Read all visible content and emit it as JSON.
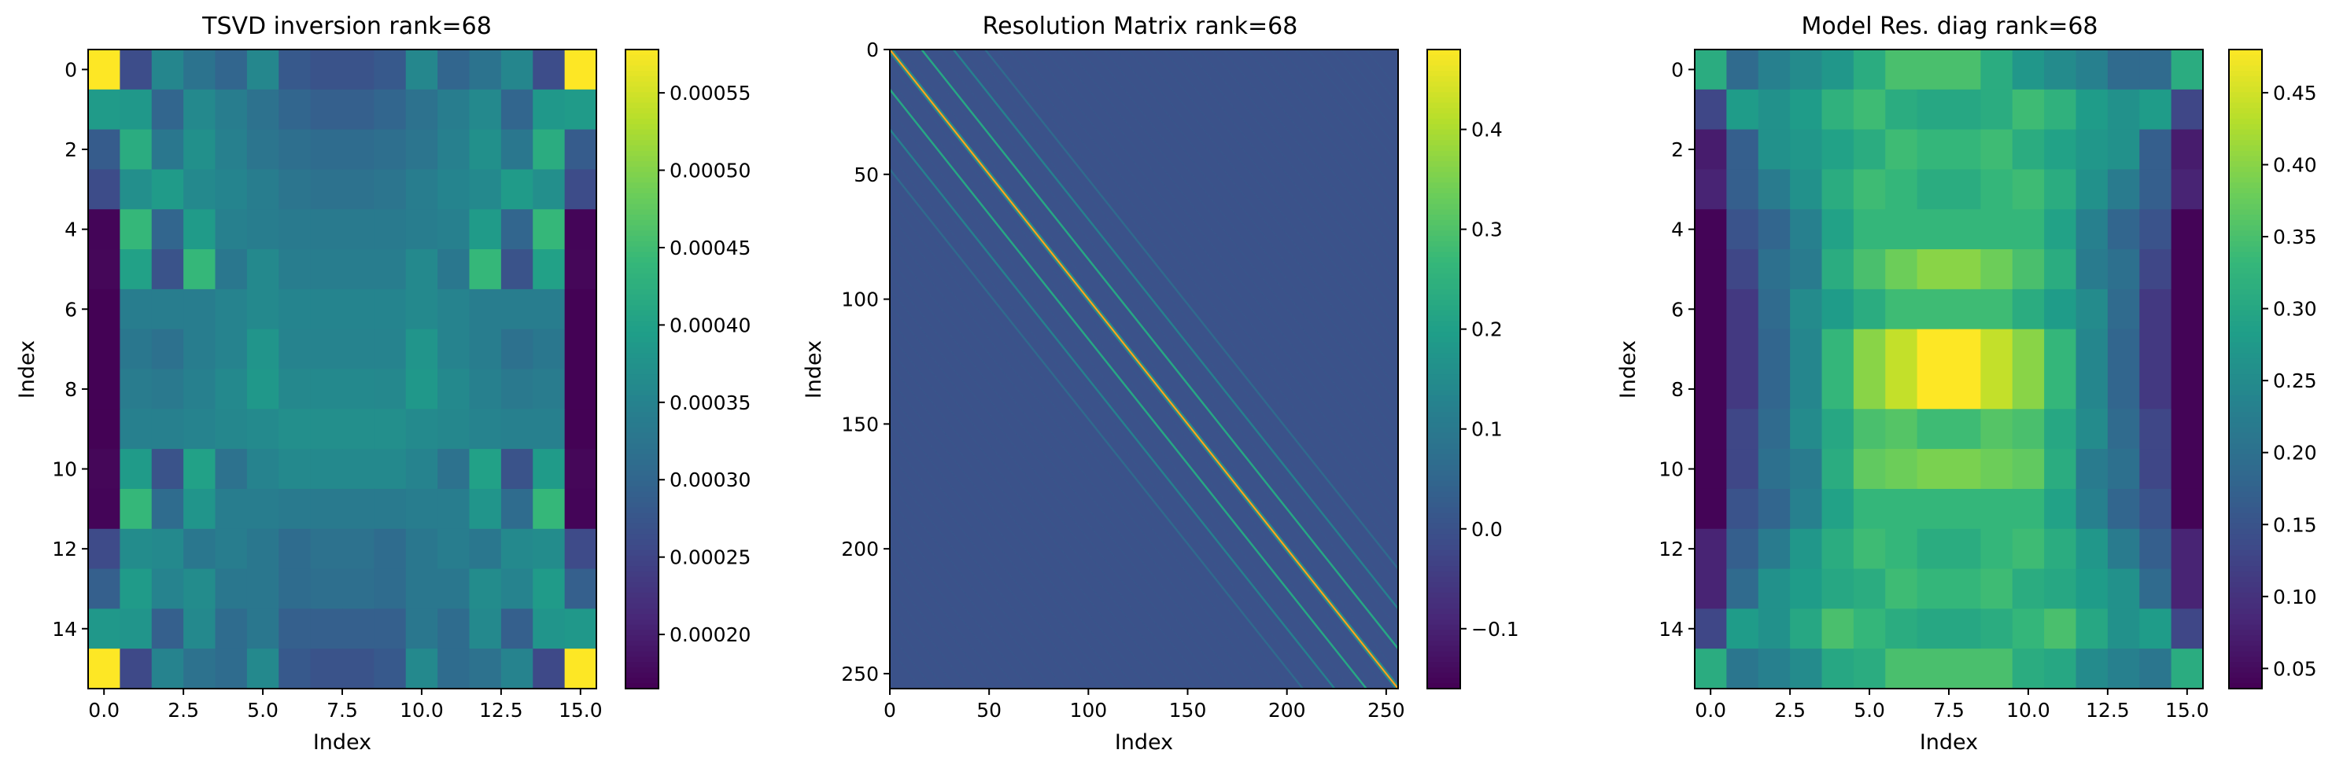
{
  "colors": {
    "viridis_stops": [
      "#440154",
      "#482878",
      "#3e4a89",
      "#31688e",
      "#26828e",
      "#1f9e89",
      "#35b779",
      "#6ece58",
      "#b5de2b",
      "#fde725"
    ],
    "diag_cells": [
      "#26828e",
      "#fde725",
      "#e67e22"
    ],
    "background": "#ffffff"
  },
  "chart_data": [
    {
      "type": "heatmap",
      "title": "TSVD inversion rank=68",
      "xlabel": "Index",
      "ylabel": "Index",
      "rows": 16,
      "cols": 16,
      "x_ticks": [
        0.0,
        2.5,
        5.0,
        7.5,
        10.0,
        12.5,
        15.0
      ],
      "x_tick_labels": [
        "0.0",
        "2.5",
        "5.0",
        "7.5",
        "10.0",
        "12.5",
        "15.0"
      ],
      "y_ticks": [
        0,
        2,
        4,
        6,
        8,
        10,
        12,
        14
      ],
      "y_tick_labels": [
        "0",
        "2",
        "4",
        "6",
        "8",
        "10",
        "12",
        "14"
      ],
      "vmin": 0.000165,
      "vmax": 0.000578,
      "colorbar_ticks": [
        0.0002,
        0.00025,
        0.0003,
        0.00035,
        0.0004,
        0.00045,
        0.0005,
        0.00055
      ],
      "colorbar_tick_labels": [
        "0.00020",
        "0.00025",
        "0.00030",
        "0.00035",
        "0.00040",
        "0.00045",
        "0.00050",
        "0.00055"
      ],
      "values": [
        [
          0.000578,
          0.000262,
          0.000355,
          0.000322,
          0.0003,
          0.000356,
          0.00028,
          0.00027,
          0.00027,
          0.00028,
          0.000356,
          0.0003,
          0.000322,
          0.000355,
          0.000262,
          0.000578
        ],
        [
          0.00039,
          0.000385,
          0.0003,
          0.00036,
          0.00034,
          0.00032,
          0.0003,
          0.00029,
          0.00029,
          0.0003,
          0.00032,
          0.00034,
          0.00036,
          0.0003,
          0.000385,
          0.00039
        ],
        [
          0.000285,
          0.00042,
          0.00033,
          0.000372,
          0.000345,
          0.000325,
          0.000315,
          0.00031,
          0.00031,
          0.000315,
          0.000325,
          0.000345,
          0.000372,
          0.00033,
          0.00042,
          0.000285
        ],
        [
          0.00026,
          0.00037,
          0.00039,
          0.00036,
          0.000352,
          0.00034,
          0.000325,
          0.00032,
          0.00032,
          0.000325,
          0.00034,
          0.000352,
          0.00036,
          0.00039,
          0.00037,
          0.00026
        ],
        [
          0.00017,
          0.00044,
          0.0003,
          0.00039,
          0.000345,
          0.00034,
          0.000335,
          0.000335,
          0.000335,
          0.000335,
          0.00034,
          0.000345,
          0.00039,
          0.0003,
          0.00044,
          0.00017
        ],
        [
          0.000172,
          0.0004,
          0.00027,
          0.00044,
          0.00033,
          0.00036,
          0.00034,
          0.00034,
          0.00034,
          0.00034,
          0.00036,
          0.00033,
          0.00044,
          0.00027,
          0.0004,
          0.000172
        ],
        [
          0.000166,
          0.00034,
          0.00034,
          0.00034,
          0.00035,
          0.00036,
          0.000352,
          0.000352,
          0.000352,
          0.000352,
          0.00036,
          0.00035,
          0.00034,
          0.00034,
          0.00034,
          0.000166
        ],
        [
          0.000166,
          0.00033,
          0.000318,
          0.00034,
          0.00035,
          0.00038,
          0.00035,
          0.00035,
          0.00035,
          0.00035,
          0.00038,
          0.00035,
          0.00034,
          0.000318,
          0.00033,
          0.000166
        ],
        [
          0.000166,
          0.000338,
          0.000332,
          0.000345,
          0.00036,
          0.000385,
          0.000358,
          0.00036,
          0.00036,
          0.000358,
          0.000385,
          0.00036,
          0.000345,
          0.000332,
          0.000338,
          0.000166
        ],
        [
          0.000166,
          0.000345,
          0.000345,
          0.00035,
          0.000356,
          0.000362,
          0.00037,
          0.00037,
          0.00037,
          0.00037,
          0.000362,
          0.000356,
          0.00035,
          0.000345,
          0.000345,
          0.000166
        ],
        [
          0.000172,
          0.00039,
          0.00027,
          0.0004,
          0.00032,
          0.00035,
          0.00036,
          0.00036,
          0.00036,
          0.00036,
          0.00035,
          0.00032,
          0.0004,
          0.00027,
          0.00039,
          0.000172
        ],
        [
          0.00017,
          0.00044,
          0.00031,
          0.00038,
          0.00034,
          0.00034,
          0.000335,
          0.000335,
          0.000335,
          0.000335,
          0.00034,
          0.00034,
          0.00038,
          0.00031,
          0.00044,
          0.00017
        ],
        [
          0.000258,
          0.000365,
          0.00036,
          0.00033,
          0.00034,
          0.00033,
          0.00031,
          0.00032,
          0.00032,
          0.00031,
          0.00033,
          0.00034,
          0.00033,
          0.00036,
          0.000365,
          0.000258
        ],
        [
          0.00029,
          0.00039,
          0.00035,
          0.000365,
          0.00033,
          0.00033,
          0.00031,
          0.000315,
          0.000315,
          0.00031,
          0.00033,
          0.00033,
          0.000365,
          0.00035,
          0.00039,
          0.00029
        ],
        [
          0.000385,
          0.00038,
          0.00029,
          0.00036,
          0.00031,
          0.00033,
          0.00029,
          0.00029,
          0.00029,
          0.00029,
          0.00033,
          0.00031,
          0.00036,
          0.00029,
          0.00038,
          0.000385
        ],
        [
          0.000578,
          0.000255,
          0.00035,
          0.00032,
          0.00031,
          0.00036,
          0.00028,
          0.00027,
          0.00027,
          0.00028,
          0.00036,
          0.00031,
          0.00032,
          0.00035,
          0.000255,
          0.000578
        ]
      ]
    },
    {
      "type": "heatmap",
      "title": "Resolution Matrix rank=68",
      "xlabel": "Index",
      "ylabel": "Index",
      "rows": 256,
      "cols": 256,
      "background_value": 0.0,
      "x_ticks": [
        0,
        50,
        100,
        150,
        200,
        250
      ],
      "x_tick_labels": [
        "0",
        "50",
        "100",
        "150",
        "200",
        "250"
      ],
      "y_ticks": [
        0,
        50,
        100,
        150,
        200,
        250
      ],
      "y_tick_labels": [
        "0",
        "50",
        "100",
        "150",
        "200",
        "250"
      ],
      "vmin": -0.16,
      "vmax": 0.48,
      "colorbar_ticks": [
        -0.1,
        0.0,
        0.1,
        0.2,
        0.3,
        0.4
      ],
      "colorbar_tick_labels": [
        "−0.1",
        "0.0",
        "0.1",
        "0.2",
        "0.3",
        "0.4"
      ],
      "main_diagonal_peak": 0.48,
      "off_diagonals": [
        {
          "offset": 16,
          "value": 0.22
        },
        {
          "offset": -16,
          "value": 0.22
        },
        {
          "offset": 32,
          "value": 0.12
        },
        {
          "offset": -32,
          "value": 0.12
        },
        {
          "offset": 48,
          "value": 0.06
        },
        {
          "offset": -48,
          "value": 0.06
        },
        {
          "offset": 1,
          "value": 0.15
        },
        {
          "offset": -1,
          "value": 0.15
        }
      ]
    },
    {
      "type": "heatmap",
      "title": "Model Res. diag rank=68",
      "xlabel": "Index",
      "ylabel": "Index",
      "rows": 16,
      "cols": 16,
      "x_ticks": [
        0.0,
        2.5,
        5.0,
        7.5,
        10.0,
        12.5,
        15.0
      ],
      "x_tick_labels": [
        "0.0",
        "2.5",
        "5.0",
        "7.5",
        "10.0",
        "12.5",
        "15.0"
      ],
      "y_ticks": [
        0,
        2,
        4,
        6,
        8,
        10,
        12,
        14
      ],
      "y_tick_labels": [
        "0",
        "2",
        "4",
        "6",
        "8",
        "10",
        "12",
        "14"
      ],
      "vmin": 0.036,
      "vmax": 0.48,
      "colorbar_ticks": [
        0.05,
        0.1,
        0.15,
        0.2,
        0.25,
        0.3,
        0.35,
        0.4,
        0.45
      ],
      "colorbar_tick_labels": [
        "0.05",
        "0.10",
        "0.15",
        "0.20",
        "0.25",
        "0.30",
        "0.35",
        "0.40",
        "0.45"
      ],
      "values": [
        [
          0.31,
          0.19,
          0.23,
          0.25,
          0.27,
          0.31,
          0.35,
          0.35,
          0.35,
          0.31,
          0.27,
          0.25,
          0.23,
          0.19,
          0.19,
          0.31
        ],
        [
          0.13,
          0.28,
          0.26,
          0.28,
          0.32,
          0.34,
          0.31,
          0.3,
          0.3,
          0.31,
          0.34,
          0.32,
          0.28,
          0.26,
          0.28,
          0.13
        ],
        [
          0.07,
          0.17,
          0.26,
          0.27,
          0.29,
          0.31,
          0.34,
          0.33,
          0.33,
          0.34,
          0.31,
          0.29,
          0.27,
          0.26,
          0.17,
          0.07
        ],
        [
          0.08,
          0.17,
          0.22,
          0.26,
          0.31,
          0.34,
          0.33,
          0.31,
          0.31,
          0.33,
          0.34,
          0.31,
          0.26,
          0.22,
          0.17,
          0.08
        ],
        [
          0.04,
          0.15,
          0.18,
          0.23,
          0.29,
          0.33,
          0.33,
          0.33,
          0.33,
          0.33,
          0.33,
          0.29,
          0.23,
          0.18,
          0.15,
          0.04
        ],
        [
          0.04,
          0.13,
          0.2,
          0.22,
          0.31,
          0.35,
          0.38,
          0.4,
          0.4,
          0.38,
          0.35,
          0.31,
          0.22,
          0.2,
          0.13,
          0.04
        ],
        [
          0.04,
          0.11,
          0.19,
          0.25,
          0.28,
          0.31,
          0.34,
          0.34,
          0.34,
          0.34,
          0.31,
          0.28,
          0.25,
          0.19,
          0.11,
          0.04
        ],
        [
          0.04,
          0.11,
          0.18,
          0.24,
          0.33,
          0.4,
          0.44,
          0.48,
          0.48,
          0.44,
          0.4,
          0.33,
          0.24,
          0.18,
          0.11,
          0.04
        ],
        [
          0.04,
          0.11,
          0.18,
          0.24,
          0.33,
          0.4,
          0.44,
          0.48,
          0.48,
          0.44,
          0.4,
          0.33,
          0.24,
          0.18,
          0.11,
          0.04
        ],
        [
          0.04,
          0.13,
          0.19,
          0.25,
          0.3,
          0.35,
          0.36,
          0.34,
          0.34,
          0.36,
          0.35,
          0.3,
          0.25,
          0.19,
          0.13,
          0.04
        ],
        [
          0.04,
          0.13,
          0.2,
          0.22,
          0.31,
          0.37,
          0.38,
          0.39,
          0.39,
          0.38,
          0.37,
          0.31,
          0.22,
          0.2,
          0.13,
          0.04
        ],
        [
          0.04,
          0.15,
          0.18,
          0.23,
          0.29,
          0.33,
          0.33,
          0.33,
          0.33,
          0.33,
          0.33,
          0.29,
          0.23,
          0.18,
          0.15,
          0.04
        ],
        [
          0.08,
          0.17,
          0.22,
          0.27,
          0.31,
          0.34,
          0.33,
          0.31,
          0.31,
          0.33,
          0.34,
          0.31,
          0.27,
          0.22,
          0.17,
          0.08
        ],
        [
          0.08,
          0.19,
          0.26,
          0.28,
          0.3,
          0.31,
          0.34,
          0.33,
          0.33,
          0.34,
          0.31,
          0.3,
          0.28,
          0.26,
          0.19,
          0.08
        ],
        [
          0.13,
          0.28,
          0.26,
          0.3,
          0.35,
          0.33,
          0.31,
          0.3,
          0.3,
          0.31,
          0.33,
          0.35,
          0.3,
          0.26,
          0.28,
          0.13
        ],
        [
          0.31,
          0.21,
          0.23,
          0.25,
          0.3,
          0.31,
          0.35,
          0.35,
          0.35,
          0.35,
          0.31,
          0.3,
          0.25,
          0.23,
          0.21,
          0.31
        ]
      ]
    }
  ]
}
